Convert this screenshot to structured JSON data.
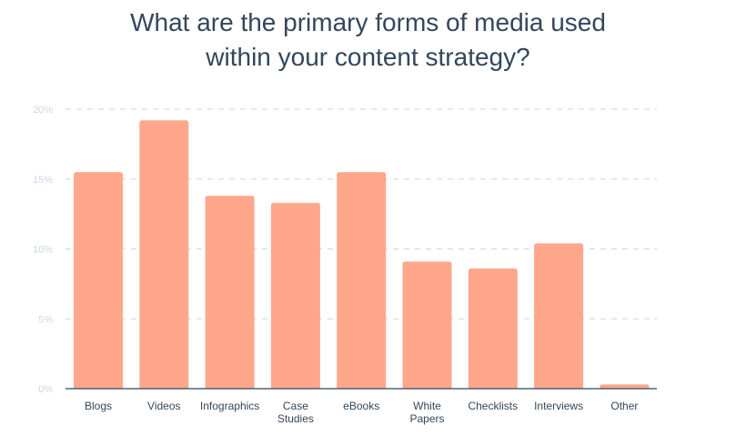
{
  "chart_data": {
    "type": "bar",
    "title_lines": [
      "What are the primary forms of media used",
      "within your content strategy?"
    ],
    "categories": [
      [
        "Blogs"
      ],
      [
        "Videos"
      ],
      [
        "Infographics"
      ],
      [
        "Case",
        "Studies"
      ],
      [
        "eBooks"
      ],
      [
        "White",
        "Papers"
      ],
      [
        "Checklists"
      ],
      [
        "Interviews"
      ],
      [
        "Other"
      ]
    ],
    "values": [
      15.5,
      19.2,
      13.8,
      13.3,
      15.5,
      9.1,
      8.6,
      10.4,
      0.3
    ],
    "y_ticks": [
      0,
      5,
      10,
      15,
      20
    ],
    "y_tick_labels": [
      "0%",
      "5%",
      "10%",
      "15%",
      "20%"
    ],
    "ylim": [
      0,
      20
    ],
    "xlabel": "",
    "ylabel": "",
    "grid": true,
    "bar_color": "#ffa78b",
    "axis_color": "#33475b",
    "grid_color": "#cbd6e2",
    "tick_label_color": "#cbd6e2",
    "label_color": "#33475b"
  }
}
